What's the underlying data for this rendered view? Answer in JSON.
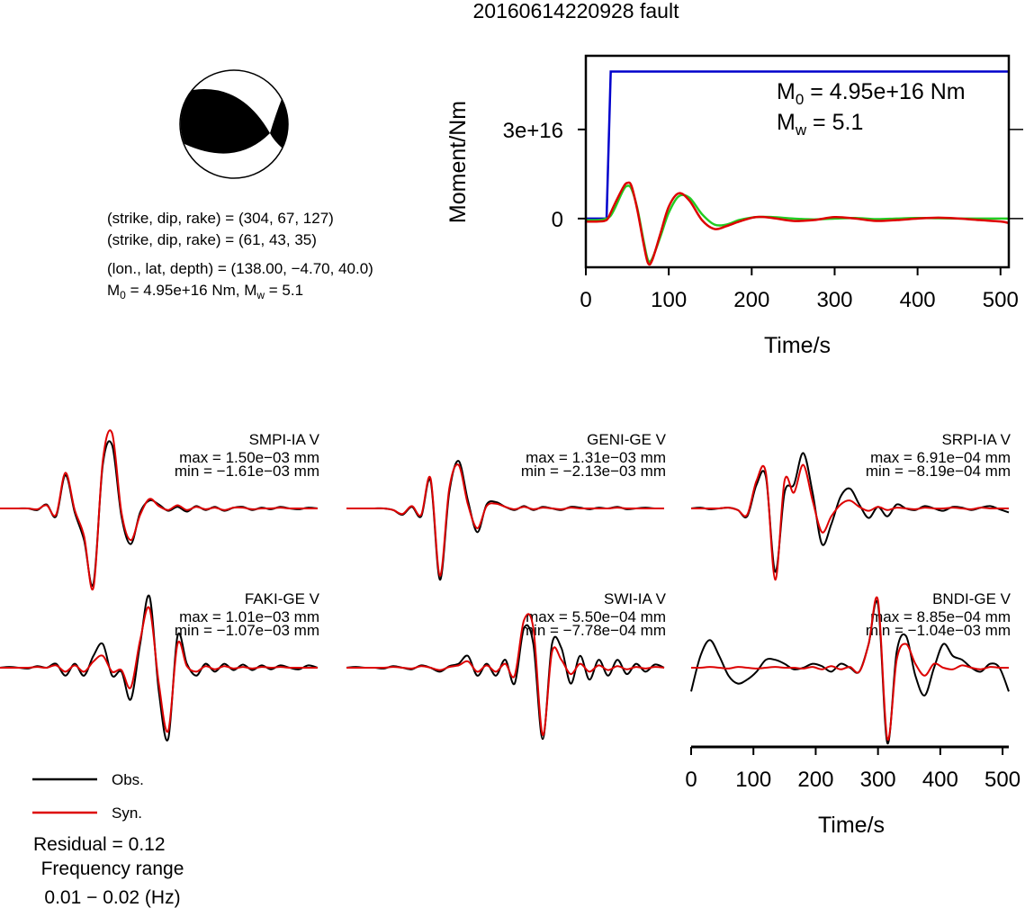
{
  "title": "20160614220928 fault",
  "mechanism": {
    "lines": [
      "(strike, dip, rake) = (304, 67, 127)",
      "(strike, dip, rake) = (61, 43, 35)",
      "(lon., lat, depth) = (138.00, −4.70, 40.0)"
    ],
    "moment": [
      "M",
      "0",
      " = 4.95e+16 Nm, M",
      "w",
      " = 5.1"
    ]
  },
  "chart_data": [
    {
      "type": "line",
      "xlabel": "Time/s",
      "ylabel": "Moment/Nm",
      "x": [
        0,
        15,
        25,
        30,
        35,
        45,
        50,
        55,
        62,
        70,
        75,
        80,
        90,
        100,
        112,
        125,
        140,
        155,
        170,
        185,
        205,
        225,
        250,
        275,
        300,
        325,
        350,
        375,
        400,
        425,
        450,
        475,
        500,
        510
      ],
      "xlim": [
        0,
        510
      ],
      "xticks": [
        0,
        100,
        200,
        300,
        400,
        500
      ],
      "ylim": [
        -1.64e+16,
        5.48e+16
      ],
      "yticks": [
        0,
        {
          "value": 3e+16,
          "label": "3e+16"
        }
      ],
      "annotations": [
        [
          "M",
          "0",
          " = 4.95e+16 Nm"
        ],
        [
          "M",
          "w",
          " = 5.1"
        ]
      ],
      "series": [
        {
          "color": "#0000cc",
          "smooth": false,
          "values": [
            0,
            0,
            0,
            4.95e+16,
            4.95e+16,
            4.95e+16,
            4.95e+16,
            4.95e+16,
            4.95e+16,
            4.95e+16,
            4.95e+16,
            4.95e+16,
            4.95e+16,
            4.95e+16,
            4.95e+16,
            4.95e+16,
            4.95e+16,
            4.95e+16,
            4.95e+16,
            4.95e+16,
            4.95e+16,
            4.95e+16,
            4.95e+16,
            4.95e+16,
            4.95e+16,
            4.95e+16,
            4.95e+16,
            4.95e+16,
            4.95e+16,
            4.95e+16,
            4.95e+16,
            4.95e+16,
            4.95e+16,
            4.95e+16
          ]
        },
        {
          "color": "#22cc22",
          "smooth": true,
          "values": [
            -500000000000000.0,
            -500000000000000.0,
            0,
            1000000000000000.0,
            3500000000000000.0,
            9500000000000000.0,
            1.1e+16,
            1e+16,
            3500000000000000.0,
            -8000000000000000.0,
            -1.4e+16,
            -1.35e+16,
            -6000000000000000.0,
            2000000000000000.0,
            7500000000000000.0,
            7000000000000000.0,
            1500000000000000.0,
            -2000000000000000.0,
            -2000000000000000.0,
            -500000000000000.0,
            500000000000000.0,
            500000000000000.0,
            0,
            -300000000000000.0,
            0,
            200000000000000.0,
            -200000000000000.0,
            0,
            200000000000000.0,
            100000000000000.0,
            0,
            0,
            0,
            0
          ]
        },
        {
          "color": "#dd0000",
          "smooth": true,
          "values": [
            -1000000000000000.0,
            -1000000000000000.0,
            -500000000000000.0,
            2000000000000000.0,
            5000000000000000.0,
            1.05e+16,
            1.2e+16,
            1.1e+16,
            3000000000000000.0,
            -9000000000000000.0,
            -1.5e+16,
            -1.4e+16,
            -5000000000000000.0,
            4000000000000000.0,
            8500000000000000.0,
            6000000000000000.0,
            -500000000000000.0,
            -3500000000000000.0,
            -2500000000000000.0,
            -1000000000000000.0,
            500000000000000.0,
            200000000000000.0,
            -800000000000000.0,
            -500000000000000.0,
            500000000000000.0,
            0,
            -800000000000000.0,
            -500000000000000.0,
            0,
            300000000000000.0,
            0,
            -500000000000000.0,
            -1000000000000000.0,
            -1500000000000000.0
          ]
        }
      ]
    },
    {
      "type": "waveform",
      "xlabel": "Time/s",
      "x": [
        0,
        15,
        30,
        45,
        60,
        75,
        90,
        105,
        120,
        135,
        150,
        165,
        180,
        195,
        210,
        225,
        240,
        255,
        270,
        285,
        300,
        315,
        330,
        345,
        360,
        375,
        390,
        405,
        420,
        435,
        450,
        465,
        480,
        495,
        510
      ],
      "xlim": [
        0,
        510
      ],
      "xticks": [
        0,
        100,
        200,
        300,
        400,
        500
      ],
      "series": [
        {
          "name": "Obs.",
          "color": "#000000"
        },
        {
          "name": "Syn.",
          "color": "#dd0000"
        }
      ],
      "panels": [
        {
          "station": "SMPI-IA V",
          "max": "max = 1.50e−03 mm",
          "min": "min = −1.61e−03 mm",
          "obs": [
            0,
            0,
            0,
            0,
            -0.02,
            0.05,
            -0.1,
            0.42,
            -0.05,
            -0.4,
            -0.95,
            0.55,
            0.8,
            -0.1,
            -0.45,
            -0.05,
            0.1,
            0.05,
            -0.03,
            0.02,
            -0.04,
            0.03,
            -0.02,
            0.02,
            -0.03,
            0.01,
            0.02,
            -0.02,
            0.01,
            -0.01,
            0.02,
            0,
            -0.01,
            0.01,
            0
          ],
          "syn": [
            0,
            0,
            0,
            0,
            -0.01,
            0.04,
            -0.08,
            0.45,
            -0.02,
            -0.35,
            -1.0,
            0.6,
            0.95,
            -0.05,
            -0.4,
            -0.08,
            0.12,
            0.03,
            -0.02,
            0.04,
            -0.02,
            0.02,
            -0.01,
            0.01,
            -0.02,
            0.01,
            0.01,
            -0.01,
            0,
            0,
            0.01,
            0,
            0,
            0,
            0
          ]
        },
        {
          "station": "GENI-GE V",
          "max": "max = 1.31e−03 mm",
          "min": "min = −2.13e−03 mm",
          "obs": [
            0,
            0,
            0,
            0,
            0,
            -0.02,
            -0.08,
            0.02,
            -0.1,
            0.35,
            -0.9,
            0.2,
            0.6,
            0.1,
            -0.3,
            0.05,
            0.08,
            0.02,
            -0.02,
            0.03,
            -0.02,
            0.02,
            0,
            -0.02,
            0.02,
            0.01,
            -0.01,
            0.01,
            0,
            0.02,
            -0.01,
            0,
            0.01,
            0,
            0
          ],
          "syn": [
            0,
            0,
            0,
            0,
            0,
            -0.02,
            -0.07,
            0.03,
            -0.08,
            0.38,
            -0.85,
            0.25,
            0.55,
            0.05,
            -0.25,
            0.03,
            0.06,
            0.02,
            -0.01,
            0.02,
            -0.01,
            0.01,
            0,
            -0.01,
            0.01,
            0,
            0,
            0,
            0,
            0.01,
            0,
            0,
            0,
            0,
            0
          ]
        },
        {
          "station": "SRPI-IA V",
          "max": "max = 6.91e−04 mm",
          "min": "min = −8.19e−04 mm",
          "obs": [
            0,
            0.01,
            -0.01,
            0,
            0.01,
            -0.02,
            -0.1,
            0.3,
            0.4,
            -0.8,
            0.2,
            0.3,
            0.7,
            0.2,
            -0.45,
            -0.2,
            0.15,
            0.25,
            0.05,
            -0.12,
            0.02,
            -0.1,
            0.05,
            0,
            -0.02,
            0.03,
            0,
            -0.03,
            0.02,
            0.01,
            -0.02,
            0.01,
            0.03,
            -0.01,
            -0.05
          ],
          "syn": [
            0,
            0,
            0,
            0,
            0.01,
            -0.02,
            -0.08,
            0.35,
            0.45,
            -0.9,
            0.35,
            0.2,
            0.55,
            0.1,
            -0.3,
            -0.1,
            0.05,
            0.1,
            0.02,
            -0.03,
            0.02,
            -0.02,
            0.01,
            0,
            -0.01,
            0.01,
            0,
            0,
            0.01,
            0,
            -0.01,
            0.01,
            0,
            0,
            0
          ]
        },
        {
          "station": "FAKI-GE V",
          "max": "max = 1.01e−03 mm",
          "min": "min = −1.07e−03 mm",
          "obs": [
            0,
            0.01,
            0,
            -0.01,
            0.02,
            0,
            0.05,
            -0.1,
            0.05,
            -0.1,
            0.15,
            0.3,
            -0.1,
            -0.05,
            -0.4,
            0.3,
            0.9,
            -0.3,
            -0.9,
            0.4,
            0.05,
            -0.1,
            0.05,
            -0.05,
            0.05,
            -0.03,
            0.04,
            -0.03,
            0.03,
            -0.02,
            0.03,
            0,
            -0.02,
            0.03,
            0
          ],
          "syn": [
            0,
            0,
            0,
            0,
            0.01,
            0,
            0.03,
            -0.05,
            0.03,
            -0.05,
            0.08,
            0.15,
            -0.05,
            -0.03,
            -0.25,
            0.35,
            0.75,
            -0.2,
            -0.8,
            0.3,
            0.02,
            -0.05,
            0.02,
            -0.02,
            0.02,
            -0.01,
            0.01,
            -0.01,
            0.01,
            0,
            0.01,
            0,
            0,
            0,
            0
          ]
        },
        {
          "station": "SWI-IA V",
          "max": "max = 5.50e−04 mm",
          "min": "min = −7.78e−04 mm",
          "obs": [
            0,
            0.01,
            0,
            0,
            -0.01,
            0.02,
            0,
            -0.02,
            0.03,
            0,
            -0.05,
            0.02,
            0.05,
            0.15,
            -0.1,
            0.05,
            -0.1,
            0.1,
            -0.2,
            0.5,
            0.3,
            -0.9,
            0.3,
            0.25,
            -0.2,
            0.15,
            -0.15,
            0.1,
            -0.1,
            0.1,
            -0.08,
            0.05,
            -0.05,
            0.04,
            0
          ],
          "syn": [
            0,
            0,
            0,
            0,
            0,
            0.01,
            0,
            -0.01,
            0.02,
            0,
            -0.03,
            0.01,
            0.03,
            0.08,
            -0.05,
            0.03,
            -0.05,
            0.05,
            -0.1,
            0.6,
            0.5,
            -0.85,
            0.2,
            0.1,
            -0.08,
            0.05,
            -0.05,
            0.03,
            -0.03,
            0.02,
            -0.02,
            0.01,
            -0.01,
            0.01,
            0
          ]
        },
        {
          "station": "BNDI-GE V",
          "max": "max = 8.85e−04 mm",
          "min": "min = −1.04e−03 mm",
          "obs": [
            -0.3,
            0.15,
            0.35,
            0.15,
            -0.1,
            -0.2,
            -0.15,
            -0.05,
            0.1,
            0.1,
            0.05,
            -0.02,
            0,
            0.05,
            0.02,
            -0.05,
            0.05,
            0,
            -0.05,
            0.3,
            0.8,
            -0.95,
            0.2,
            0.4,
            -0.1,
            -0.35,
            0,
            0.3,
            0.15,
            0.1,
            0,
            -0.05,
            0.05,
            0,
            -0.3
          ],
          "syn": [
            0,
            0,
            0.01,
            0,
            -0.01,
            0.01,
            0,
            -0.01,
            0,
            0.01,
            0,
            0,
            -0.01,
            0.01,
            -0.02,
            0.02,
            -0.02,
            0.01,
            -0.05,
            0.3,
            0.85,
            -0.9,
            0.1,
            0.3,
            0.05,
            -0.1,
            0.05,
            0,
            -0.02,
            0.03,
            0,
            -0.02,
            0.01,
            0,
            0
          ]
        }
      ]
    }
  ],
  "residual": "Residual = 0.12",
  "frequency": [
    "Frequency range",
    "0.01 − 0.02 (Hz)"
  ]
}
